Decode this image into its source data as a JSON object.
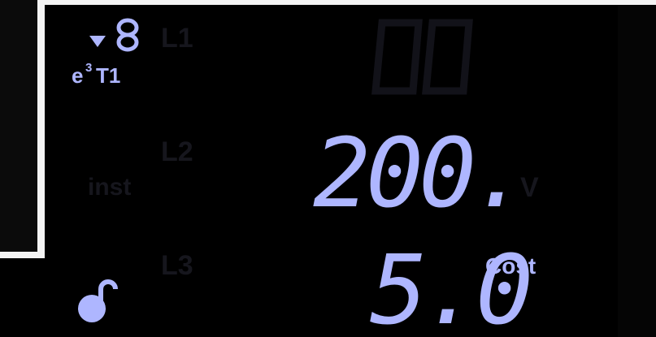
{
  "indicators": {
    "energy": "e",
    "exponent": "3",
    "tariff": "T1"
  },
  "mode": "inst",
  "rows": [
    {
      "label": "L1"
    },
    {
      "label": "L2",
      "value": "200.",
      "unit": "V"
    },
    {
      "label": "L3",
      "value": "5.0",
      "unit": "Cost"
    }
  ]
}
